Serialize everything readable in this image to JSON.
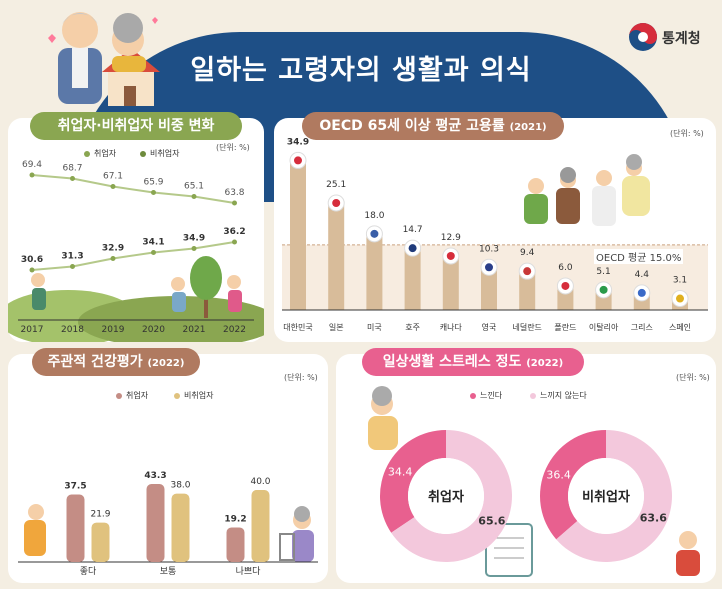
{
  "header": {
    "title": "일하는 고령자의 생활과 의식",
    "org": "통계청",
    "colors": {
      "navy": "#1e4f86",
      "green": "#8aa651",
      "brown": "#b07a60",
      "pink": "#e8608f",
      "background": "#f4eee2"
    }
  },
  "panel1": {
    "title": "취업자·비취업자 비중 변화",
    "unit": "(단위: %)",
    "legend": [
      "취업자",
      "비취업자"
    ]
  },
  "panel2": {
    "title": "OECD 65세 이상 평균 고용률",
    "year": "(2021)",
    "unit": "(단위: %)",
    "avg_label": "OECD 평균  15.0%"
  },
  "panel3": {
    "title": "주관적 건강평가",
    "year": "(2022)",
    "unit": "(단위: %)",
    "legend": [
      "취업자",
      "비취업자"
    ]
  },
  "panel4": {
    "title": "일상생활 스트레스 정도",
    "year": "(2022)",
    "unit": "(단위: %)",
    "legend": [
      "느낀다",
      "느끼지 않는다"
    ]
  },
  "chart_data": [
    {
      "type": "line",
      "title": "취업자·비취업자 비중 변화",
      "x": [
        "2017",
        "2018",
        "2019",
        "2020",
        "2021",
        "2022"
      ],
      "series": [
        {
          "name": "취업자",
          "values": [
            30.6,
            31.3,
            32.9,
            34.1,
            34.9,
            36.2
          ],
          "color": "#8aa651"
        },
        {
          "name": "비취업자",
          "values": [
            69.4,
            68.7,
            67.1,
            65.9,
            65.1,
            63.8
          ],
          "color": "#8aa651"
        }
      ]
    },
    {
      "type": "bar",
      "title": "OECD 65세 이상 평균 고용률 (2021)",
      "categories": [
        "대한민국",
        "일본",
        "미국",
        "호주",
        "캐나다",
        "영국",
        "네덜란드",
        "폴란드",
        "이탈리아",
        "그리스",
        "스페인"
      ],
      "values": [
        34.9,
        25.1,
        18.0,
        14.7,
        12.9,
        10.3,
        9.4,
        6.0,
        5.1,
        4.4,
        3.1
      ],
      "reference_line": 15.0,
      "color": "#d8bc9a"
    },
    {
      "type": "bar",
      "title": "주관적 건강평가 (2022)",
      "categories": [
        "좋다",
        "보통",
        "나쁘다"
      ],
      "series": [
        {
          "name": "취업자",
          "values": [
            37.5,
            43.3,
            19.2
          ],
          "color": "#c48d85"
        },
        {
          "name": "비취업자",
          "values": [
            21.9,
            38.0,
            40.0
          ],
          "color": "#e0c27e"
        }
      ]
    },
    {
      "type": "pie",
      "title": "취업자",
      "labels": [
        "느낀다",
        "느끼지 않는다"
      ],
      "values": [
        34.4,
        65.6
      ],
      "colors": [
        "#e8608f",
        "#f3c8dc"
      ]
    },
    {
      "type": "pie",
      "title": "비취업자",
      "labels": [
        "느낀다",
        "느끼지 않는다"
      ],
      "values": [
        36.4,
        63.6
      ],
      "colors": [
        "#e8608f",
        "#f3c8dc"
      ]
    }
  ]
}
